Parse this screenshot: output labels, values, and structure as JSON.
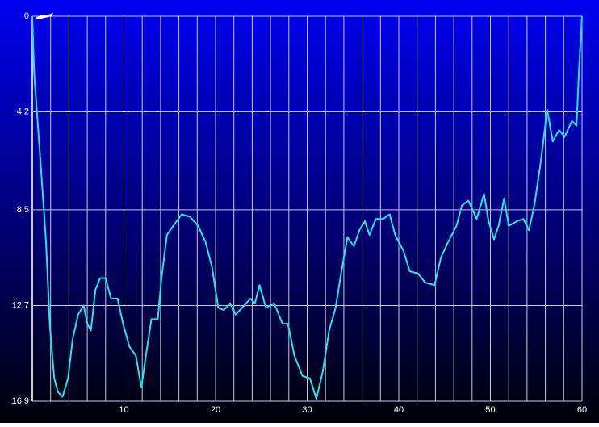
{
  "chart_data": {
    "type": "line",
    "x": [
      0,
      0.2,
      0.9,
      1.5,
      1.9,
      2.4,
      2.8,
      3.3,
      3.9,
      4.4,
      5.0,
      5.6,
      6.0,
      6.4,
      6.9,
      7.4,
      8.0,
      8.6,
      9.3,
      9.9,
      10.6,
      11.3,
      11.9,
      12.4,
      13.0,
      13.7,
      14.1,
      14.7,
      15.4,
      16.3,
      17.2,
      18.1,
      18.9,
      19.6,
      20.3,
      20.9,
      21.6,
      22.2,
      22.9,
      23.8,
      24.3,
      24.8,
      25.5,
      26.4,
      27.3,
      27.9,
      28.6,
      29.5,
      30.3,
      31.0,
      31.7,
      32.4,
      33.1,
      33.7,
      34.4,
      35.1,
      35.7,
      36.3,
      36.8,
      37.5,
      38.3,
      39.0,
      39.6,
      40.5,
      41.2,
      42.1,
      42.9,
      43.9,
      44.6,
      45.4,
      46.3,
      46.9,
      47.6,
      48.5,
      49.3,
      49.8,
      50.4,
      50.9,
      51.5,
      52.0,
      52.9,
      53.6,
      54.2,
      54.8,
      55.5,
      56.2,
      56.8,
      57.5,
      58.1,
      58.9,
      59.4,
      59.7,
      60
    ],
    "series": [
      {
        "color": "#22e4ec",
        "values": [
          0,
          2.5,
          6.4,
          9.9,
          13.5,
          15.9,
          16.5,
          16.7,
          15.9,
          14.2,
          13.1,
          12.7,
          13.5,
          13.8,
          12.0,
          11.5,
          11.5,
          12.4,
          12.4,
          13.5,
          14.5,
          14.9,
          16.3,
          14.9,
          13.3,
          13.3,
          11.5,
          9.6,
          9.2,
          8.7,
          8.8,
          9.2,
          9.9,
          11.0,
          12.8,
          12.9,
          12.6,
          13.1,
          12.8,
          12.4,
          12.6,
          11.8,
          12.8,
          12.6,
          13.5,
          13.5,
          14.9,
          15.8,
          15.9,
          16.8,
          15.6,
          13.8,
          12.8,
          11.3,
          9.7,
          10.1,
          9.4,
          9.0,
          9.6,
          8.9,
          8.9,
          8.7,
          9.6,
          10.3,
          11.2,
          11.3,
          11.7,
          11.8,
          10.6,
          9.9,
          9.2,
          8.3,
          8.1,
          8.9,
          7.8,
          9.0,
          9.8,
          9.2,
          8.0,
          9.2,
          9.0,
          8.9,
          9.4,
          8.3,
          6.4,
          4.1,
          5.5,
          5.0,
          5.3,
          4.6,
          4.8,
          2.1,
          0
        ]
      }
    ],
    "xlim": [
      0,
      60
    ],
    "xticks": [
      10,
      20,
      30,
      40,
      50,
      60
    ],
    "xgrid": [
      2,
      4,
      6,
      8,
      10,
      12,
      14,
      16,
      18,
      20,
      22,
      24,
      26,
      28,
      30,
      32,
      34,
      36,
      38,
      40,
      42,
      44,
      46,
      48,
      50,
      52,
      54,
      56,
      58
    ],
    "ylim": [
      0,
      16.9
    ],
    "yticks": [
      0,
      {
        "value": 4.2,
        "label": "4,2"
      },
      {
        "value": 8.5,
        "label": "8,5"
      },
      {
        "value": 12.7,
        "label": "12,7"
      },
      {
        "value": 16.9,
        "label": "16,9"
      }
    ],
    "y_inverted": true,
    "grid": true
  }
}
